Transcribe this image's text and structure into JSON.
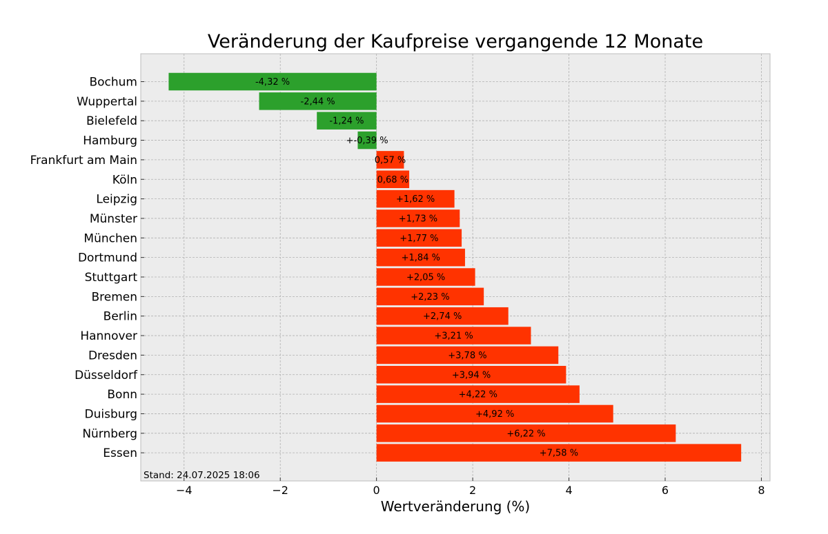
{
  "chart_data": {
    "type": "bar",
    "orientation": "horizontal",
    "title": "Veränderung der Kaufpreise vergangende 12 Monate",
    "xlabel": "Wertveränderung (%)",
    "ylabel": "",
    "xlim": [
      -4.9,
      8.18
    ],
    "xticks": [
      -4,
      -2,
      0,
      2,
      4,
      6,
      8
    ],
    "xtick_labels": [
      "−4",
      "−2",
      "0",
      "2",
      "4",
      "6",
      "8"
    ],
    "grid": true,
    "categories": [
      "Bochum",
      "Wuppertal",
      "Bielefeld",
      "Hamburg",
      "Frankfurt am Main",
      "Köln",
      "Leipzig",
      "Münster",
      "München",
      "Dortmund",
      "Stuttgart",
      "Bremen",
      "Berlin",
      "Hannover",
      "Dresden",
      "Düsseldorf",
      "Bonn",
      "Duisburg",
      "Nürnberg",
      "Essen"
    ],
    "values": [
      -4.32,
      -2.44,
      -1.24,
      -0.39,
      0.57,
      0.68,
      1.62,
      1.73,
      1.77,
      1.84,
      2.05,
      2.23,
      2.74,
      3.21,
      3.78,
      3.94,
      4.22,
      4.92,
      6.22,
      7.58
    ],
    "labels": [
      "-4,32 %",
      "-2,44 %",
      "-1,24 %",
      "+-0,39 %",
      "0,57 %",
      "0,68 %",
      "+1,62 %",
      "+1,73 %",
      "+1,77 %",
      "+1,84 %",
      "+2,05 %",
      "+2,23 %",
      "+2,74 %",
      "+3,21 %",
      "+3,78 %",
      "+3,94 %",
      "+4,22 %",
      "+4,92 %",
      "+6,22 %",
      "+7,58 %"
    ],
    "colors": {
      "negative": "#2ca02c",
      "positive": "#ff3300",
      "plot_background": "#ececec",
      "grid": "#b0b0b0"
    },
    "annotation": "Stand: 24.07.2025 18:06"
  }
}
